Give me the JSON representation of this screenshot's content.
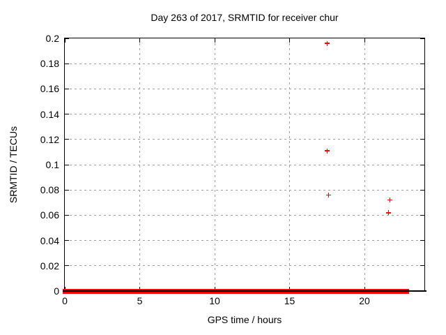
{
  "chart_data": {
    "type": "scatter",
    "title": "Day 263 of 2017, SRMTID for receiver chur",
    "xlabel": "GPS time / hours",
    "ylabel": "SRMTID / TECUs",
    "xlim": [
      0,
      24
    ],
    "ylim": [
      0,
      0.2
    ],
    "grid": true,
    "legend": "none",
    "marker": "plus",
    "colors": {
      "points": "#ff0000",
      "grid": "#9e9e9e",
      "border": "#000000",
      "background": "#ffffff",
      "text": "#000000"
    },
    "xticks": [
      {
        "value": 0,
        "label": "0"
      },
      {
        "value": 5,
        "label": "5"
      },
      {
        "value": 10,
        "label": "10"
      },
      {
        "value": 15,
        "label": "15"
      },
      {
        "value": 20,
        "label": "20"
      }
    ],
    "yticks": [
      {
        "value": 0,
        "label": "0"
      },
      {
        "value": 0.02,
        "label": "0.02"
      },
      {
        "value": 0.04,
        "label": "0.04"
      },
      {
        "value": 0.06,
        "label": "0.06"
      },
      {
        "value": 0.08,
        "label": "0.08"
      },
      {
        "value": 0.1,
        "label": "0.1"
      },
      {
        "value": 0.12,
        "label": "0.12"
      },
      {
        "value": 0.14,
        "label": "0.14"
      },
      {
        "value": 0.16,
        "label": "0.16"
      },
      {
        "value": 0.18,
        "label": "0.18"
      },
      {
        "value": 0.2,
        "label": "0.2"
      }
    ],
    "series": [
      {
        "name": "SRMTID",
        "color": "#ff0000",
        "points": [
          {
            "x": 17.5,
            "y": 0.196
          },
          {
            "x": 17.5,
            "y": 0.111
          },
          {
            "x": 17.6,
            "y": 0.076
          },
          {
            "x": 21.7,
            "y": 0.072
          },
          {
            "x": 21.6,
            "y": 0.062
          }
        ]
      }
    ],
    "zero_value_band": {
      "y": 0,
      "x_start": 0,
      "x_end": 22.85,
      "color": "#ff0000"
    }
  }
}
